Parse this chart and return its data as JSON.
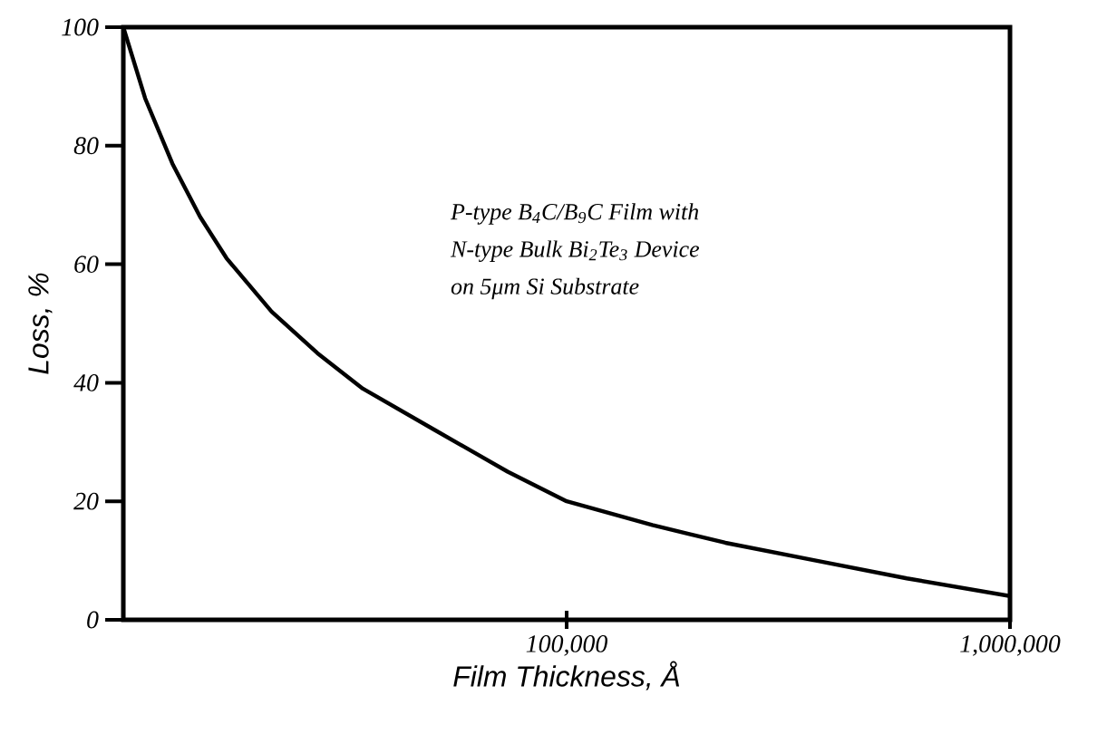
{
  "chart_data": {
    "type": "line",
    "xlabel": "Film Thickness, Å",
    "ylabel": "Loss, %",
    "log": "x",
    "xlim": [
      10000,
      1000000
    ],
    "xticks": [
      {
        "value": 100000,
        "label": "100,000"
      },
      {
        "value": 1000000,
        "label": "1,000,000"
      }
    ],
    "ylim": [
      0,
      100
    ],
    "yticks": [
      0,
      20,
      40,
      60,
      80,
      100
    ],
    "grid": false,
    "marker": "none",
    "line_style": "solid",
    "annotations": [
      "P-type B$_{4}$C/B$_{9}$C Film with",
      "N-type Bulk Bi$_{2}$Te$_{3}$ Device",
      "on 5μm Si Substrate"
    ],
    "series": [
      {
        "color": "#000000",
        "x": [
          10000,
          11200,
          12900,
          14900,
          17100,
          21600,
          27400,
          34700,
          50500,
          73600,
          100000,
          156000,
          228000,
          365000,
          585000,
          1000000
        ],
        "values": [
          100,
          88,
          77,
          68,
          61,
          52,
          45,
          39,
          32,
          25,
          20,
          16,
          13,
          10,
          7,
          4
        ]
      }
    ]
  }
}
